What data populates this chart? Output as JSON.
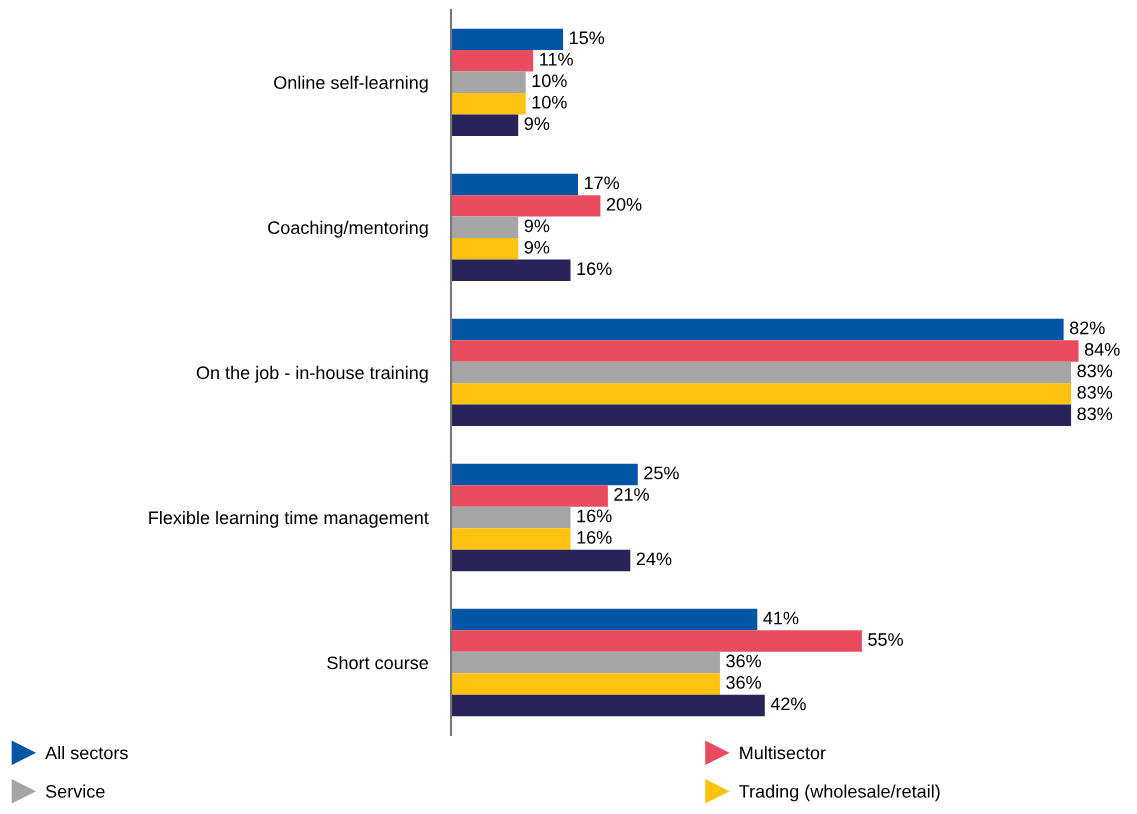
{
  "chart_data": {
    "type": "bar",
    "orientation": "horizontal",
    "categories": [
      "Online self-learning",
      "Coaching/mentoring",
      "On the job - in-house training",
      "Flexible learning time management",
      "Short course"
    ],
    "series": [
      {
        "name": "All sectors",
        "color": "#0055a5",
        "values": [
          15,
          17,
          82,
          25,
          41
        ],
        "value_labels": [
          "15%",
          "17%",
          "82%",
          "25%",
          "41%"
        ]
      },
      {
        "name": "Multisector",
        "color": "#e84c5e",
        "values": [
          11,
          20,
          84,
          21,
          55
        ],
        "value_labels": [
          "11%",
          "20%",
          "84%",
          "21%",
          "55%"
        ]
      },
      {
        "name": "Service",
        "color": "#a5a5a5",
        "values": [
          10,
          9,
          83,
          16,
          36
        ],
        "value_labels": [
          "10%",
          "9%",
          "83%",
          "16%",
          "36%"
        ]
      },
      {
        "name": "Trading (wholesale/retail)",
        "color": "#ffc20e",
        "values": [
          10,
          9,
          83,
          16,
          36
        ],
        "value_labels": [
          "10%",
          "9%",
          "83%",
          "16%",
          "36%"
        ]
      },
      {
        "color": "#28245a",
        "values": [
          9,
          16,
          83,
          24,
          42
        ],
        "value_labels": [
          "9%",
          "16%",
          "83%",
          "24%",
          "42%"
        ]
      }
    ],
    "legend": "bottom",
    "grid": false
  }
}
